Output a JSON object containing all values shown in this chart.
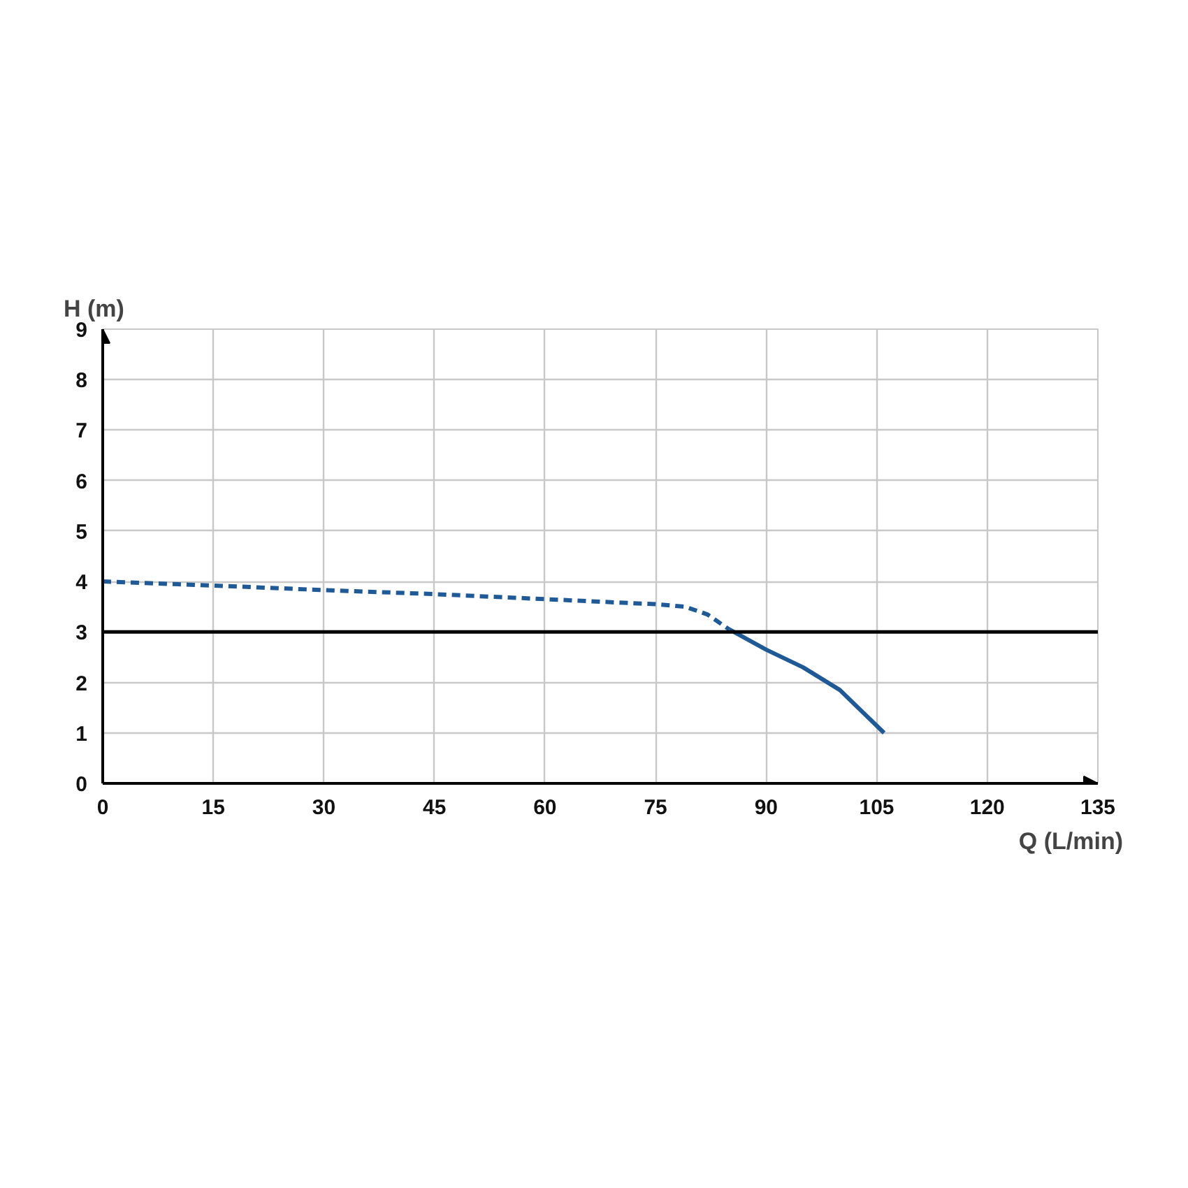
{
  "chart_data": {
    "type": "line",
    "xlabel": "Q (L/min)",
    "ylabel": "H (m)",
    "xlim": [
      0,
      135
    ],
    "xticks": [
      0,
      15,
      30,
      45,
      60,
      75,
      90,
      105,
      120,
      135
    ],
    "ylim": [
      0,
      9
    ],
    "yticks": [
      0,
      1,
      2,
      3,
      4,
      5,
      6,
      7,
      8,
      9
    ],
    "grid": true,
    "marker": "none",
    "series": [
      {
        "color": "#1f5a96",
        "line_style": "dashed",
        "x": [
          0,
          15,
          30,
          45,
          60,
          75,
          79,
          82,
          85
        ],
        "values": [
          4.0,
          3.92,
          3.83,
          3.75,
          3.65,
          3.55,
          3.5,
          3.35,
          3.05
        ]
      },
      {
        "color": "#1f5a96",
        "line_style": "solid",
        "x": [
          85,
          90,
          95,
          100,
          106
        ],
        "values": [
          3.05,
          2.65,
          2.3,
          1.85,
          1.0
        ]
      }
    ],
    "ref_lines": [
      {
        "axis": "y",
        "value": 3,
        "color": "#000000",
        "line_style": "solid"
      }
    ]
  }
}
